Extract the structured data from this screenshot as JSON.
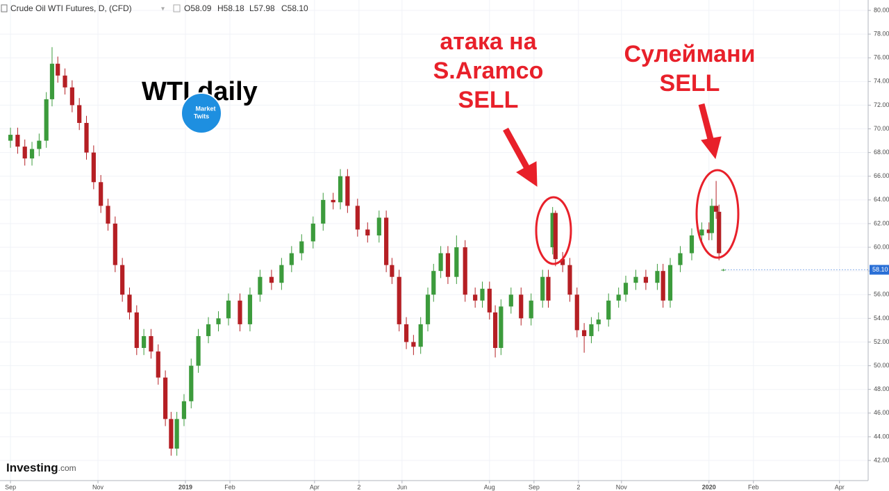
{
  "chart_data": {
    "type": "candlestick",
    "symbol": "Crude Oil WTI Futures, D, (CFD)",
    "ohlc_text": [
      "O58.09",
      "H58.18",
      "L57.98",
      "C58.10"
    ],
    "title": "WTI daily",
    "logo": [
      "Market",
      "Twits"
    ],
    "brand": [
      "Investing",
      ".com"
    ],
    "annotations": [
      {
        "lines": [
          "атака на",
          "S.Aramco",
          "SELL"
        ]
      },
      {
        "lines": [
          "Сулеймани",
          "SELL"
        ]
      }
    ],
    "up_color": "#3c9b3c",
    "down_color": "#b51f24",
    "grid": true,
    "price_label": {
      "value": 58.1,
      "label": "58.10"
    },
    "xlim": [
      -7.3,
      598
    ],
    "ylim": [
      40.3,
      80.88
    ],
    "xticks": [
      {
        "value": 0,
        "label": "Sep"
      },
      {
        "value": 61,
        "label": "Nov"
      },
      {
        "value": 122,
        "label": "2019"
      },
      {
        "value": 153,
        "label": "Feb"
      },
      {
        "value": 212,
        "label": "Apr"
      },
      {
        "value": 243,
        "label": "2"
      },
      {
        "value": 273,
        "label": "Jun"
      },
      {
        "value": 334,
        "label": "Aug"
      },
      {
        "value": 365,
        "label": "Sep"
      },
      {
        "value": 396,
        "label": "2"
      },
      {
        "value": 426,
        "label": "Nov"
      },
      {
        "value": 487,
        "label": "2020"
      },
      {
        "value": 518,
        "label": "Feb"
      },
      {
        "value": 578,
        "label": "Apr"
      }
    ],
    "yticks": [
      {
        "value": 42,
        "label": "42.00"
      },
      {
        "value": 44,
        "label": "44.00"
      },
      {
        "value": 46,
        "label": "46.00"
      },
      {
        "value": 48,
        "label": "48.00"
      },
      {
        "value": 50,
        "label": "50.00"
      },
      {
        "value": 52,
        "label": "52.00"
      },
      {
        "value": 54,
        "label": "54.00"
      },
      {
        "value": 56,
        "label": "56.00"
      },
      {
        "value": 58,
        "label": "58.00"
      },
      {
        "value": 60,
        "label": "60.00"
      },
      {
        "value": 62,
        "label": "62.00"
      },
      {
        "value": 64,
        "label": "64.00"
      },
      {
        "value": 66,
        "label": "66.00"
      },
      {
        "value": 68,
        "label": "68.00"
      },
      {
        "value": 70,
        "label": "70.00"
      },
      {
        "value": 72,
        "label": "72.00"
      },
      {
        "value": 74,
        "label": "74.00"
      },
      {
        "value": 76,
        "label": "76.00"
      },
      {
        "value": 78,
        "label": "78.00"
      },
      {
        "value": 80,
        "label": "80.00"
      }
    ],
    "x": [
      0,
      5,
      10,
      15,
      20,
      25,
      29,
      33,
      38,
      43,
      48,
      53,
      58,
      63,
      68,
      73,
      78,
      83,
      88,
      93,
      98,
      103,
      108,
      112,
      116,
      121,
      126,
      131,
      138,
      145,
      152,
      160,
      167,
      174,
      182,
      189,
      196,
      203,
      211,
      218,
      225,
      230,
      235,
      242,
      249,
      257,
      262,
      266,
      271,
      276,
      281,
      286,
      291,
      295,
      300,
      305,
      311,
      317,
      324,
      329,
      334,
      338,
      342,
      349,
      356,
      363,
      371,
      375,
      378,
      380,
      385,
      390,
      395,
      400,
      405,
      410,
      417,
      424,
      429,
      436,
      443,
      451,
      455,
      460,
      467,
      475,
      482,
      487,
      489,
      492,
      494,
      497
    ],
    "open": [
      69.0,
      69.5,
      68.5,
      67.5,
      68.3,
      69,
      72.5,
      75.5,
      74.5,
      73.5,
      72,
      70.5,
      68,
      65.5,
      63.5,
      62,
      58.5,
      56,
      54.5,
      51.5,
      52.5,
      51.2,
      49,
      45.5,
      43,
      45.5,
      47,
      50,
      52.5,
      53.5,
      54,
      55.5,
      53.5,
      56,
      57.5,
      57,
      58.5,
      59.5,
      60.5,
      62,
      64,
      63.8,
      66,
      63.5,
      61.5,
      61,
      62.5,
      58.5,
      57.5,
      53.5,
      52,
      51.6,
      53.5,
      56,
      58,
      59.5,
      57.5,
      60,
      56,
      55.5,
      56.5,
      54.5,
      51.5,
      55,
      56,
      54,
      55.5,
      57.5,
      60,
      62.9,
      59,
      58.5,
      56,
      53,
      52.5,
      53.5,
      53.9,
      55.5,
      56,
      57,
      57.5,
      57,
      58,
      55.5,
      58.5,
      59.5,
      61,
      61.5,
      61.2,
      63.5,
      63,
      58.09
    ],
    "high": [
      70.1,
      70.1,
      69.1,
      68.9,
      69.6,
      73.1,
      76.9,
      76.1,
      75.1,
      74.1,
      72.6,
      71.1,
      68.6,
      66.1,
      64.1,
      62.6,
      59.1,
      56.6,
      55.1,
      53.1,
      53.1,
      51.8,
      49.6,
      46.1,
      46.1,
      47.6,
      50.6,
      53.1,
      54.1,
      54.6,
      56.1,
      56.1,
      56.6,
      58.1,
      58.1,
      59.1,
      60.1,
      61.1,
      62.6,
      64.6,
      64.6,
      66.6,
      66.6,
      64.1,
      62.1,
      63.1,
      63.1,
      59.1,
      58.1,
      54.1,
      52.6,
      54.1,
      56.6,
      58.6,
      60.1,
      60.1,
      61.0,
      60.6,
      56.6,
      57.1,
      57.1,
      55.1,
      55.6,
      56.6,
      56.6,
      56.1,
      58.1,
      58.1,
      63.4,
      63.1,
      59.6,
      59.1,
      56.6,
      53.6,
      54.1,
      54.5,
      56.1,
      56.6,
      57.6,
      58.1,
      58.1,
      58.6,
      58.6,
      59.1,
      60.1,
      61.6,
      62.1,
      62.1,
      64.1,
      65.6,
      63.6,
      58.18
    ],
    "low": [
      68.4,
      67.9,
      66.9,
      66.9,
      67.7,
      68.4,
      71.9,
      73.9,
      72.9,
      71.4,
      69.9,
      67.4,
      64.9,
      62.9,
      61.4,
      57.9,
      55.4,
      53.9,
      50.9,
      50.9,
      50.6,
      48.4,
      44.9,
      42.4,
      42.4,
      44.9,
      46.4,
      49.4,
      51.9,
      52.9,
      53.4,
      52.9,
      52.9,
      55.4,
      56.4,
      56.4,
      57.9,
      58.9,
      59.9,
      61.4,
      63.2,
      63.2,
      62.9,
      60.9,
      60.4,
      60.4,
      57.9,
      56.9,
      52.9,
      51.4,
      50.9,
      51.0,
      52.9,
      55.4,
      57.4,
      56.9,
      56.9,
      55.4,
      54.9,
      54.9,
      53.9,
      50.7,
      50.9,
      54.4,
      53.4,
      53.4,
      54.9,
      54.9,
      59.4,
      58.4,
      57.9,
      55.4,
      52.4,
      51.1,
      51.9,
      52.9,
      53.3,
      54.9,
      55.4,
      56.4,
      56.4,
      56.4,
      54.9,
      54.9,
      57.9,
      58.9,
      60.4,
      60.6,
      60.6,
      62.4,
      58.9,
      57.98
    ],
    "close": [
      69.5,
      68.5,
      67.5,
      68.3,
      69,
      72.5,
      75.5,
      74.5,
      73.5,
      72,
      70.5,
      68,
      65.5,
      63.5,
      62,
      58.5,
      56,
      54.5,
      51.5,
      52.5,
      51.2,
      49,
      45.5,
      43,
      45.5,
      47,
      50,
      52.5,
      53.5,
      54,
      55.5,
      53.5,
      56,
      57.5,
      57,
      58.5,
      59.5,
      60.5,
      62,
      64,
      63.8,
      66,
      63.5,
      61.5,
      61,
      62.5,
      58.5,
      57.5,
      53.5,
      52,
      51.6,
      53.5,
      56,
      58,
      59.5,
      57.5,
      60,
      56,
      55.5,
      56.5,
      54.5,
      51.5,
      55,
      56,
      54,
      55.5,
      57.5,
      55.5,
      62.9,
      59,
      58.5,
      56,
      53,
      52.5,
      53.5,
      53.9,
      55.5,
      56,
      57,
      57.5,
      57,
      58,
      55.5,
      58.5,
      59.5,
      61,
      61.5,
      61.2,
      63.5,
      63,
      59.5,
      58.1
    ]
  }
}
